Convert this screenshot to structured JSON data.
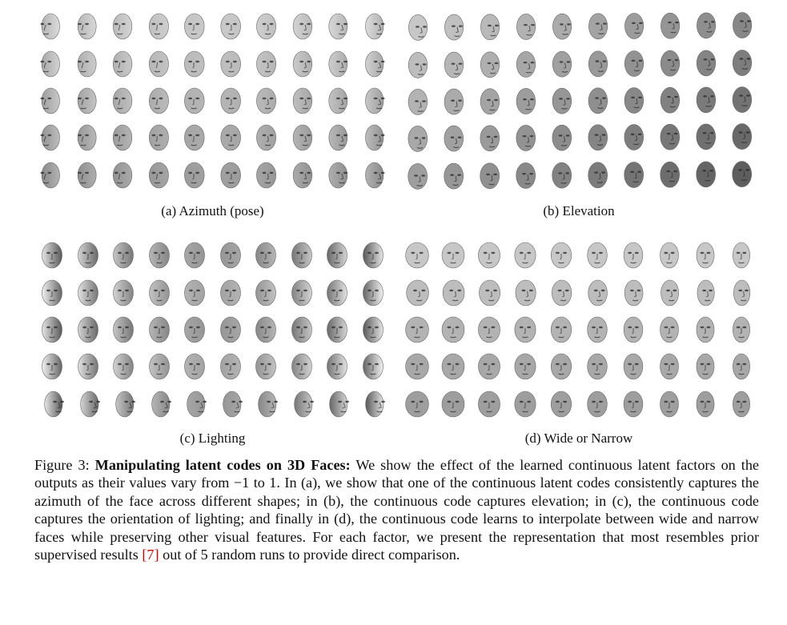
{
  "figure": {
    "panels": [
      {
        "id": "a",
        "subcaption": "(a) Azimuth (pose)",
        "factor": "azimuth",
        "rows": 5,
        "columns": 10
      },
      {
        "id": "b",
        "subcaption": "(b) Elevation",
        "factor": "elevation",
        "rows": 5,
        "columns": 10
      },
      {
        "id": "c",
        "subcaption": "(c) Lighting",
        "factor": "lighting",
        "rows": 5,
        "columns": 10
      },
      {
        "id": "d",
        "subcaption": "(d) Wide or Narrow",
        "factor": "width",
        "rows": 5,
        "columns": 10
      }
    ],
    "caption": {
      "label": "Figure 3:",
      "title": "Manipulating latent codes on 3D Faces:",
      "text_1": "We show the effect of the learned continuous latent factors on the outputs as their values vary from −1 to 1. In (a), we show that one of the continuous latent codes consistently captures the azimuth of the face across different shapes; in (b), the continuous code captures elevation; in (c), the continuous code captures the orientation of lighting; and finally in (d), the continuous code learns to interpolate between wide and narrow faces while preserving other visual features. For each factor, we present the representation that most resembles prior supervised results ",
      "ref": "[7]",
      "text_2": " out of 5 random runs to provide direct comparison."
    }
  }
}
